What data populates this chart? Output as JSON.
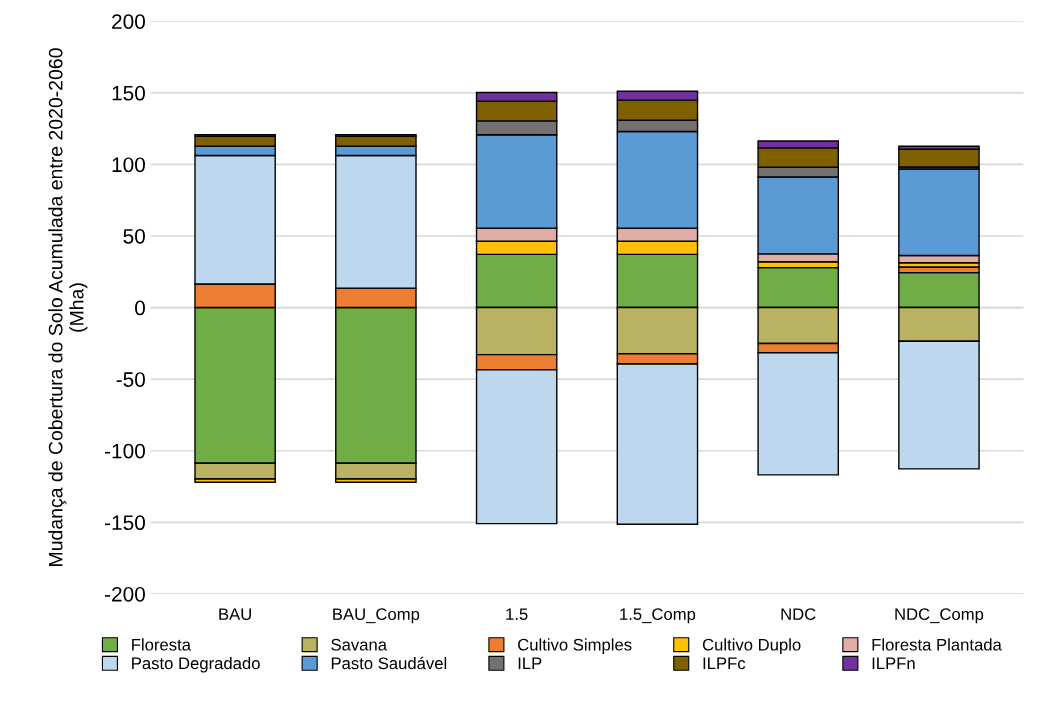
{
  "chart_data": {
    "type": "bar",
    "stacked": true,
    "ylabel": "Mudança de Cobertura do Solo Acumulada entre 2020-2060\n(Mha)",
    "categories": [
      "BAU",
      "BAU_Comp",
      "1.5",
      "1.5_Comp",
      "NDC",
      "NDC_Comp"
    ],
    "series": [
      {
        "name": "Floresta",
        "color": "#70ad47",
        "values": [
          -108.8,
          -108.8,
          37.1,
          37.1,
          27.9,
          24.4
        ]
      },
      {
        "name": "Savana",
        "color": "#b8b262",
        "values": [
          -11.0,
          -11.0,
          -32.9,
          -32.3,
          -25.1,
          -23.5
        ]
      },
      {
        "name": "Cultivo Simples",
        "color": "#ed7d31",
        "values": [
          16.4,
          13.6,
          -10.6,
          -7.1,
          -6.5,
          3.9
        ]
      },
      {
        "name": "Cultivo Duplo",
        "color": "#ffc000",
        "values": [
          -2.2,
          -2.2,
          9.2,
          9.2,
          4.1,
          3.0
        ]
      },
      {
        "name": "Floresta Plantada",
        "color": "#e0aca6",
        "values": [
          null,
          null,
          9.2,
          9.2,
          5.5,
          5.1
        ]
      },
      {
        "name": "Pasto Degradado",
        "color": "#bdd7ee",
        "values": [
          89.8,
          92.6,
          -107.4,
          -112.0,
          -85.3,
          -89.2
        ]
      },
      {
        "name": "Pasto Saudável",
        "color": "#5b9bd5",
        "values": [
          6.5,
          6.5,
          65.2,
          67.5,
          53.7,
          60.4
        ]
      },
      {
        "name": "ILP",
        "color": "#767171",
        "values": [
          null,
          null,
          9.7,
          7.8,
          6.9,
          1.4
        ]
      },
      {
        "name": "ILPFc",
        "color": "#7f6000",
        "values": [
          6.9,
          6.9,
          13.8,
          14.1,
          13.4,
          12.4
        ]
      },
      {
        "name": "ILPFn",
        "color": "#7030a0",
        "values": [
          1.2,
          1.2,
          6.0,
          6.2,
          4.8,
          2.1
        ]
      }
    ],
    "ylim": [
      -200,
      200
    ],
    "yticks": [
      -200,
      -150,
      -100,
      -50,
      0,
      50,
      100,
      150,
      200
    ],
    "grid": "y",
    "legend": "bottom"
  }
}
